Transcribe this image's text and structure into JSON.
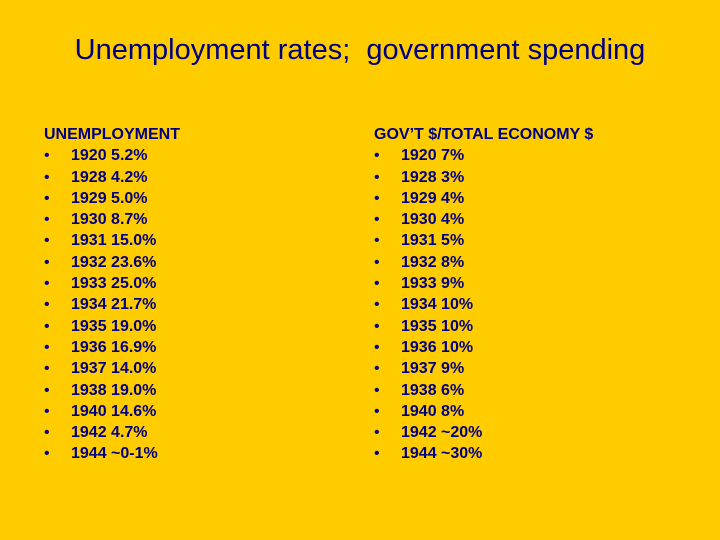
{
  "slide": {
    "title": "Unemployment rates;  government spending",
    "bullet": "•",
    "left_column": {
      "header": "UNEMPLOYMENT",
      "items": [
        "1920 5.2%",
        "1928 4.2%",
        "1929 5.0%",
        "1930 8.7%",
        "1931 15.0%",
        "1932 23.6%",
        "1933 25.0%",
        "1934 21.7%",
        "1935 19.0%",
        "1936 16.9%",
        "1937 14.0%",
        "1938 19.0%",
        "1940 14.6%",
        "1942 4.7%",
        "1944 ~0-1%"
      ]
    },
    "right_column": {
      "header": "GOV’T $/TOTAL ECONOMY $",
      "items": [
        "1920 7%",
        "1928 3%",
        "1929 4%",
        "1930 4%",
        "1931 5%",
        "1932 8%",
        "1933 9%",
        "1934 10%",
        "1935 10%",
        "1936 10%",
        "1937 9%",
        "1938 6%",
        "1940 8%",
        "1942 ~20%",
        "1944 ~30%"
      ]
    }
  },
  "colors": {
    "background": "#FFCC00",
    "text": "#000080"
  }
}
